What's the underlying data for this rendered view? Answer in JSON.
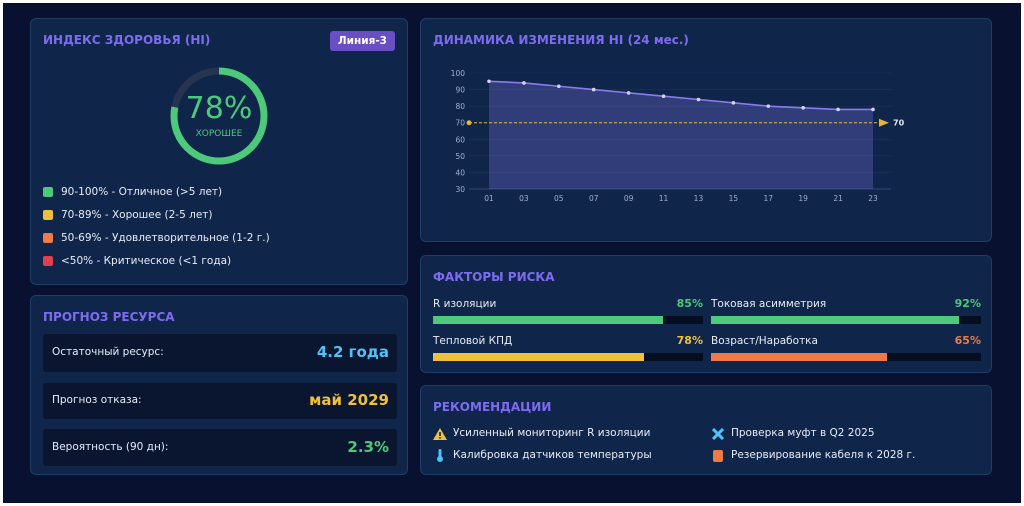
{
  "health": {
    "title": "ИНДЕКС ЗДОРОВЬЯ (HI)",
    "badge": "Линия-3",
    "value": 78,
    "value_label": "78%",
    "status": "ХОРОШЕЕ",
    "color": "#4cc97a",
    "legend": [
      {
        "label": "90-100% - Отличное (>5 лет)",
        "color": "#4cc97a"
      },
      {
        "label": "70-89% - Хорошее (2-5 лет)",
        "color": "#f0c03a"
      },
      {
        "label": "50-69% - Удовлетворительное (1-2 г.)",
        "color": "#f07a45"
      },
      {
        "label": "<50% - Критическое (<1 года)",
        "color": "#e0404e"
      }
    ]
  },
  "forecast": {
    "title": "ПРОГНОЗ РЕСУРСА",
    "rows": [
      {
        "label": "Остаточный ресурс:",
        "value": "4.2 года",
        "color": "#4fc3f7"
      },
      {
        "label": "Прогноз отказа:",
        "value": "май 2029",
        "color": "#f0c03a"
      },
      {
        "label": "Вероятность (90 дн):",
        "value": "2.3%",
        "color": "#4cc97a"
      }
    ]
  },
  "chart_data": {
    "type": "line",
    "title": "ДИНАМИКА ИЗМЕНЕНИЯ HI (24 мес.)",
    "categories": [
      "01",
      "03",
      "05",
      "07",
      "09",
      "11",
      "13",
      "15",
      "17",
      "19",
      "21",
      "23"
    ],
    "values": [
      95,
      94,
      92,
      90,
      88,
      86,
      84,
      82,
      80,
      79,
      78,
      78
    ],
    "color": "#8a7cf0",
    "threshold": 70,
    "threshold_color": "#e6b830",
    "ylim": [
      30,
      100
    ],
    "yticks": [
      30,
      40,
      50,
      60,
      70,
      80,
      90,
      100
    ]
  },
  "risk": {
    "title": "ФАКТОРЫ РИСКА",
    "items": [
      {
        "name": "R изоляции",
        "value": 85,
        "value_label": "85%",
        "color": "#4cc97a"
      },
      {
        "name": "Токовая асимметрия",
        "value": 92,
        "value_label": "92%",
        "color": "#4cc97a"
      },
      {
        "name": "Тепловой КПД",
        "value": 78,
        "value_label": "78%",
        "color": "#f0c03a"
      },
      {
        "name": "Возраст/Наработка",
        "value": 65,
        "value_label": "65%",
        "color": "#f07a45"
      }
    ]
  },
  "recommendations": {
    "title": "РЕКОМЕНДАЦИИ",
    "items": [
      "Усиленный мониторинг R изоляции",
      "Проверка муфт в Q2 2025",
      "Калибровка датчиков температуры",
      "Резервирование кабеля к 2028 г."
    ]
  }
}
